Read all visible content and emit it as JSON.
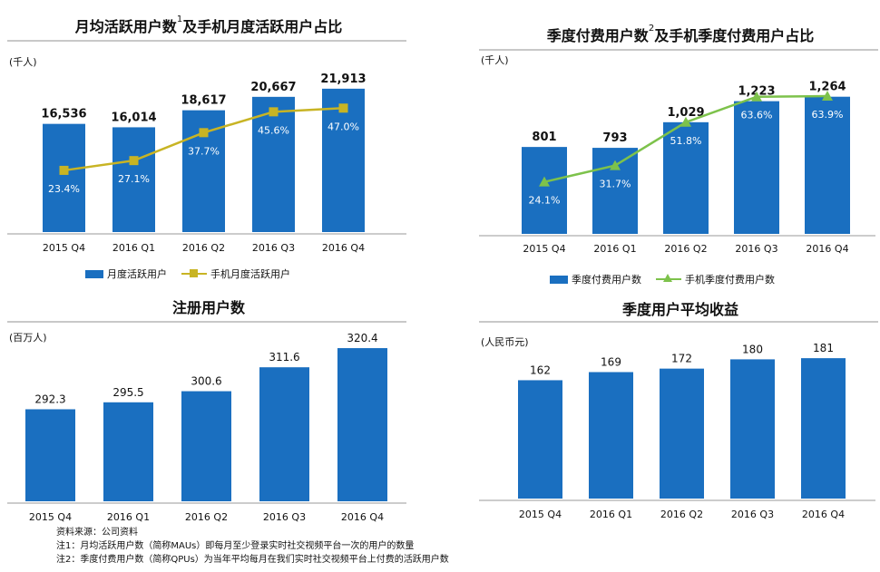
{
  "colors": {
    "bar": "#1a6fc0",
    "line_mau": "#c8b424",
    "line_qpu": "#7dc24b",
    "rule": "#c8c8c8"
  },
  "chart_data": [
    {
      "id": "mau",
      "type": "bar",
      "title_main": "月均活跃用户数",
      "title_sup": "1",
      "title_rest": "及手机月度活跃用户占比",
      "unit": "(千人)",
      "categories": [
        "2015 Q4",
        "2016 Q1",
        "2016 Q2",
        "2016 Q3",
        "2016 Q4"
      ],
      "series": [
        {
          "name": "月度活跃用户",
          "values": [
            16536,
            16014,
            18617,
            20667,
            21913
          ],
          "labels": [
            "16,536",
            "16,014",
            "18,617",
            "20,667",
            "21,913"
          ]
        },
        {
          "name": "手机月度活跃用户",
          "type": "line",
          "values": [
            23.4,
            27.1,
            37.7,
            45.6,
            47.0
          ],
          "labels": [
            "23.4%",
            "27.1%",
            "37.7%",
            "45.6%",
            "47.0%"
          ]
        }
      ],
      "ylim": [
        0,
        23000
      ],
      "line_ylim": [
        0,
        55
      ]
    },
    {
      "id": "qpu",
      "type": "bar",
      "title_main": "季度付费用户数",
      "title_sup": "2",
      "title_rest": "及手机季度付费用户占比",
      "unit": "(千人)",
      "categories": [
        "2015 Q4",
        "2016 Q1",
        "2016 Q2",
        "2016 Q3",
        "2016 Q4"
      ],
      "series": [
        {
          "name": "季度付费用户数",
          "values": [
            801,
            793,
            1029,
            1223,
            1264
          ],
          "labels": [
            "801",
            "793",
            "1,029",
            "1,223",
            "1,264"
          ]
        },
        {
          "name": "手机季度付费用户数",
          "type": "line",
          "values": [
            24.1,
            31.7,
            51.8,
            63.6,
            63.9
          ],
          "labels": [
            "24.1%",
            "31.7%",
            "51.8%",
            "63.6%",
            "63.9%"
          ]
        }
      ],
      "ylim": [
        0,
        1320
      ],
      "line_ylim": [
        0,
        74
      ]
    },
    {
      "id": "reg",
      "type": "bar",
      "title_main": "注册用户数",
      "unit": "(百万人)",
      "categories": [
        "2015 Q4",
        "2016 Q1",
        "2016 Q2",
        "2016 Q3",
        "2016 Q4"
      ],
      "series": [
        {
          "name": "注册用户数",
          "values": [
            292.3,
            295.5,
            300.6,
            311.6,
            320.4
          ],
          "labels": [
            "292.3",
            "295.5",
            "300.6",
            "311.6",
            "320.4"
          ]
        }
      ],
      "ylim": [
        250,
        325
      ]
    },
    {
      "id": "arpu",
      "type": "bar",
      "title_main": "季度用户平均收益",
      "unit": "(人民币元)",
      "categories": [
        "2015 Q4",
        "2016 Q1",
        "2016 Q2",
        "2016 Q3",
        "2016 Q4"
      ],
      "series": [
        {
          "name": "季度用户平均收益",
          "values": [
            162,
            169,
            172,
            180,
            181
          ],
          "labels": [
            "162",
            "169",
            "172",
            "180",
            "181"
          ]
        }
      ],
      "ylim": [
        60,
        185
      ]
    }
  ],
  "notes": {
    "source": "资料来源：公司资料",
    "note1": "注1：月均活跃用户数（简称MAUs）即每月至少登录实时社交视频平台一次的用户的数量",
    "note2": "注2：季度付费用户数（简称QPUs）为当年平均每月在我们实时社交视频平台上付费的活跃用户数"
  }
}
